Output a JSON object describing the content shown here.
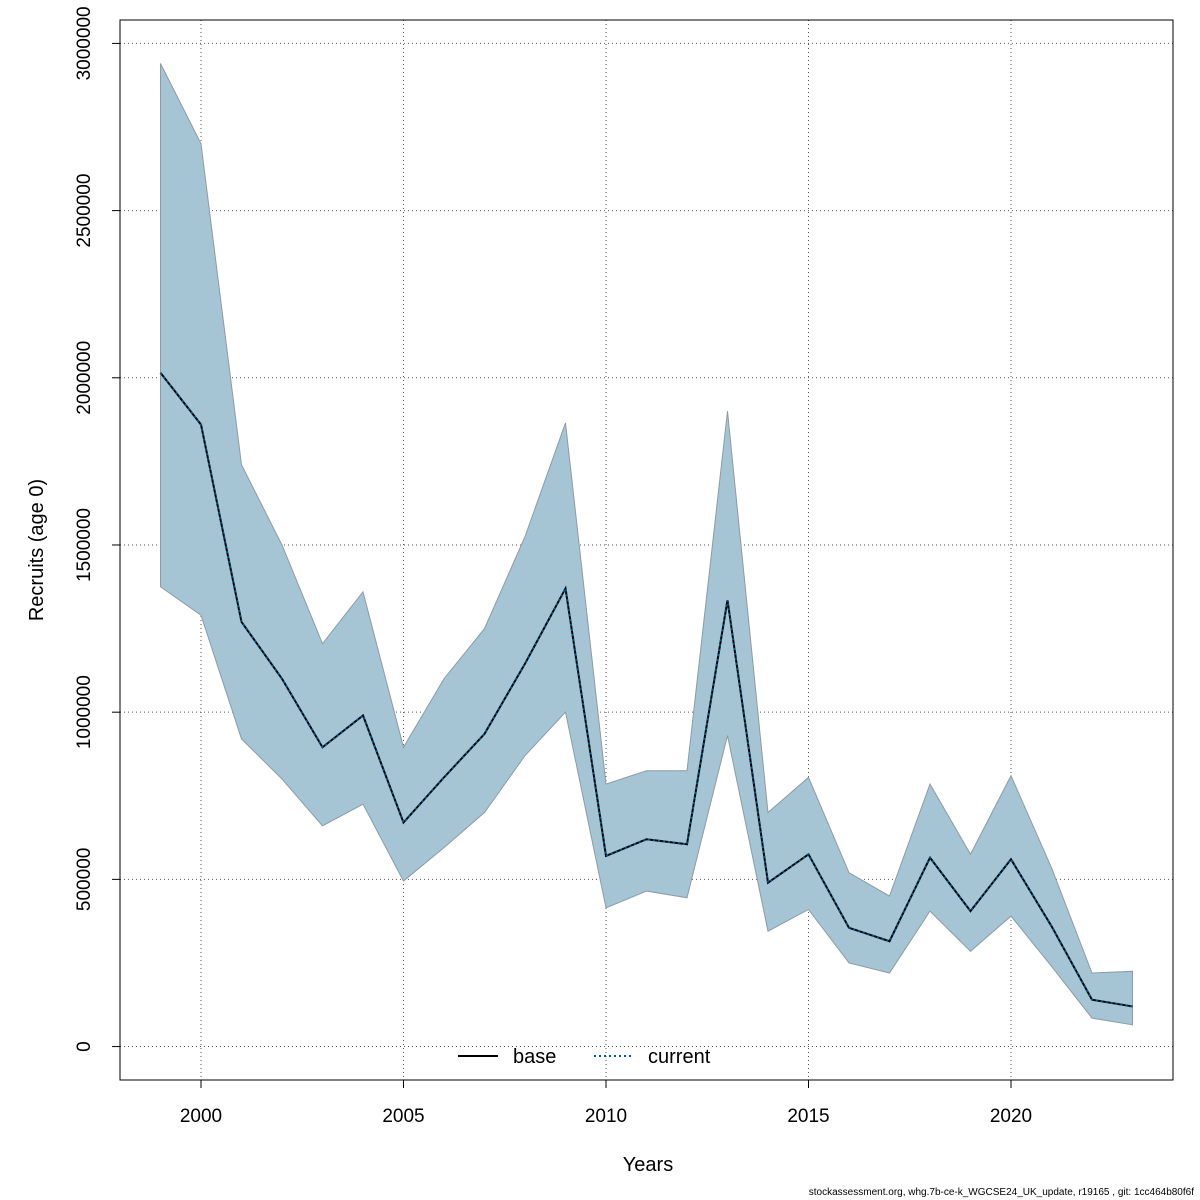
{
  "chart_data": {
    "type": "line",
    "xlabel": "Years",
    "ylabel": "Recruits (age 0)",
    "xlim": [
      1998,
      2024
    ],
    "ylim": [
      -100000,
      3070000
    ],
    "x_ticks": [
      2000,
      2005,
      2010,
      2015,
      2020
    ],
    "y_ticks": [
      0,
      500000,
      1000000,
      1500000,
      2000000,
      2500000,
      3000000
    ],
    "y_tick_labels": [
      "0",
      "500000",
      "1000000",
      "1500000",
      "2000000",
      "2500000",
      "3000000"
    ],
    "grid": true,
    "legend_position": "bottom-center",
    "years": [
      1999,
      2000,
      2001,
      2002,
      2003,
      2004,
      2005,
      2006,
      2007,
      2008,
      2009,
      2010,
      2011,
      2012,
      2013,
      2014,
      2015,
      2016,
      2017,
      2018,
      2019,
      2020,
      2021,
      2022,
      2023
    ],
    "band": {
      "color": "#a5c4d4",
      "upper": [
        2940000,
        2700000,
        1740000,
        1500000,
        1205000,
        1360000,
        895000,
        1100000,
        1250000,
        1525000,
        1865000,
        785000,
        825000,
        825000,
        1900000,
        700000,
        805000,
        520000,
        450000,
        785000,
        575000,
        810000,
        535000,
        220000,
        225000
      ],
      "lower": [
        1375000,
        1290000,
        920000,
        800000,
        660000,
        725000,
        495000,
        595000,
        700000,
        870000,
        1000000,
        415000,
        465000,
        445000,
        930000,
        345000,
        410000,
        250000,
        220000,
        405000,
        285000,
        390000,
        240000,
        85000,
        65000
      ]
    },
    "series": [
      {
        "name": "base",
        "color": "#000000",
        "style": "solid",
        "values": [
          2015000,
          1860000,
          1270000,
          1100000,
          895000,
          990000,
          670000,
          805000,
          935000,
          1145000,
          1370000,
          570000,
          620000,
          605000,
          1335000,
          490000,
          575000,
          355000,
          315000,
          565000,
          405000,
          560000,
          360000,
          140000,
          120000
        ]
      },
      {
        "name": "current",
        "color": "#005a8c",
        "style": "dotted",
        "values": [
          2015000,
          1860000,
          1270000,
          1100000,
          895000,
          990000,
          670000,
          805000,
          935000,
          1145000,
          1370000,
          570000,
          620000,
          605000,
          1335000,
          490000,
          575000,
          355000,
          315000,
          565000,
          405000,
          560000,
          360000,
          140000,
          120000
        ]
      }
    ]
  },
  "footnote": "stockassessment.org, whg.7b-ce-k_WGCSE24_UK_update, r19165 , git: 1cc464b80f6f"
}
